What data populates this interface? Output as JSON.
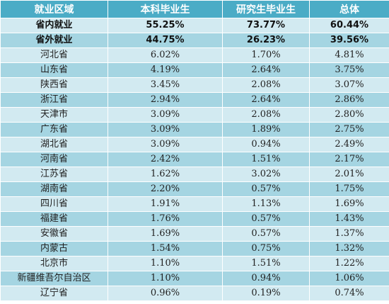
{
  "colors": {
    "header_bg": "#4bacc6",
    "row_light": "#d2eaf1",
    "row_dark": "#a5d5e2"
  },
  "table": {
    "headers": [
      "就业区域",
      "本科毕业生",
      "研究生毕业生",
      "总体"
    ],
    "rows": [
      {
        "region": "省内就业",
        "undergrad": "55.25%",
        "graduate": "73.77%",
        "overall": "60.44%",
        "bold": true
      },
      {
        "region": "省外就业",
        "undergrad": "44.75%",
        "graduate": "26.23%",
        "overall": "39.56%",
        "bold": true
      },
      {
        "region": "河北省",
        "undergrad": "6.02%",
        "graduate": "1.70%",
        "overall": "4.81%"
      },
      {
        "region": "山东省",
        "undergrad": "4.19%",
        "graduate": "2.64%",
        "overall": "3.75%"
      },
      {
        "region": "陕西省",
        "undergrad": "3.45%",
        "graduate": "2.08%",
        "overall": "3.07%"
      },
      {
        "region": "浙江省",
        "undergrad": "2.94%",
        "graduate": "2.64%",
        "overall": "2.86%"
      },
      {
        "region": "天津市",
        "undergrad": "3.09%",
        "graduate": "2.08%",
        "overall": "2.80%"
      },
      {
        "region": "广东省",
        "undergrad": "3.09%",
        "graduate": "1.89%",
        "overall": "2.75%"
      },
      {
        "region": "湖北省",
        "undergrad": "3.09%",
        "graduate": "0.94%",
        "overall": "2.49%"
      },
      {
        "region": "河南省",
        "undergrad": "2.42%",
        "graduate": "1.51%",
        "overall": "2.17%"
      },
      {
        "region": "江苏省",
        "undergrad": "1.62%",
        "graduate": "3.02%",
        "overall": "2.01%"
      },
      {
        "region": "湖南省",
        "undergrad": "2.20%",
        "graduate": "0.57%",
        "overall": "1.75%"
      },
      {
        "region": "四川省",
        "undergrad": "1.91%",
        "graduate": "1.13%",
        "overall": "1.69%"
      },
      {
        "region": "福建省",
        "undergrad": "1.76%",
        "graduate": "0.57%",
        "overall": "1.43%"
      },
      {
        "region": "安徽省",
        "undergrad": "1.69%",
        "graduate": "0.57%",
        "overall": "1.37%"
      },
      {
        "region": "内蒙古",
        "undergrad": "1.54%",
        "graduate": "0.75%",
        "overall": "1.32%"
      },
      {
        "region": "北京市",
        "undergrad": "1.10%",
        "graduate": "1.51%",
        "overall": "1.22%"
      },
      {
        "region": "新疆维吾尔自治区",
        "undergrad": "1.10%",
        "graduate": "0.94%",
        "overall": "1.06%"
      },
      {
        "region": "辽宁省",
        "undergrad": "0.96%",
        "graduate": "0.19%",
        "overall": "0.74%"
      }
    ]
  }
}
